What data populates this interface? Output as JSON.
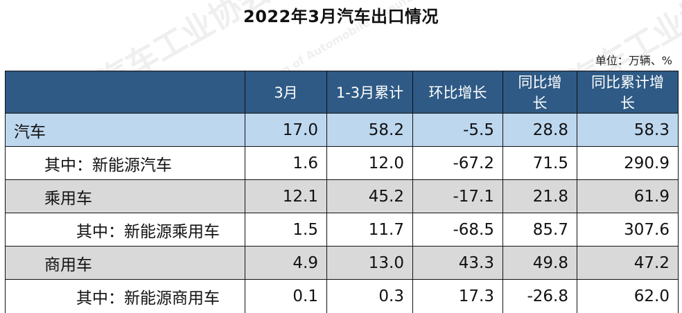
{
  "title": "2022年3月汽车出口情况",
  "unit": "单位：万辆、%",
  "watermark": {
    "cn": "中国汽车工业协会",
    "en": "China Association of Automobile Manufacturers"
  },
  "table": {
    "headers": [
      "",
      "3月",
      "1-3月累计",
      "环比增长",
      "同比增长",
      "同比累计增长"
    ],
    "rows": [
      {
        "label": "汽车",
        "style": "blue",
        "indent": 0,
        "values": [
          "17.0",
          "58.2",
          "-5.5",
          "28.8",
          "58.3"
        ]
      },
      {
        "label": "其中：新能源汽车",
        "style": "white",
        "indent": 1,
        "values": [
          "1.6",
          "12.0",
          "-67.2",
          "71.5",
          "290.9"
        ]
      },
      {
        "label": "乘用车",
        "style": "gray",
        "indent": 1,
        "values": [
          "12.1",
          "45.2",
          "-17.1",
          "21.8",
          "61.9"
        ]
      },
      {
        "label": "其中：新能源乘用车",
        "style": "white",
        "indent": 2,
        "values": [
          "1.5",
          "11.7",
          "-68.5",
          "85.7",
          "307.6"
        ]
      },
      {
        "label": "商用车",
        "style": "gray",
        "indent": 1,
        "values": [
          "4.9",
          "13.0",
          "43.3",
          "49.8",
          "47.2"
        ]
      },
      {
        "label": "其中：新能源商用车",
        "style": "white",
        "indent": 2,
        "values": [
          "0.1",
          "0.3",
          "17.3",
          "-26.8",
          "62.0"
        ]
      }
    ]
  }
}
